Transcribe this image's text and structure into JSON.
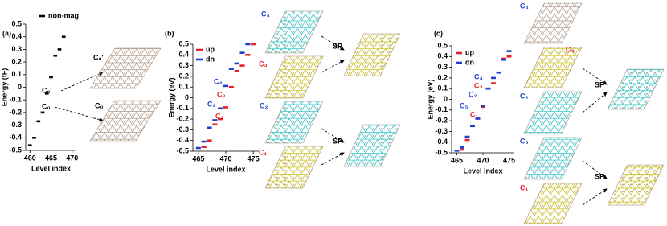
{
  "chart_data": [
    {
      "type": "level",
      "title": "(a)",
      "x_label": "Level index",
      "y_label": "Energy (tF)",
      "x": [
        460,
        461,
        462,
        463,
        464,
        465,
        466,
        467,
        468
      ],
      "series": [
        {
          "name": "non-mag",
          "color": "#000000",
          "values": [
            -0.46,
            -0.4,
            -0.27,
            -0.2,
            -0.05,
            0.08,
            0.25,
            0.3,
            0.4
          ]
        }
      ],
      "xlim": [
        459,
        471
      ],
      "xticks": [
        460,
        465,
        470
      ],
      "ylim": [
        -0.5,
        0.5
      ],
      "yticks": [
        0.5,
        0.4,
        0.3,
        0.2,
        0.1,
        0,
        -0.1,
        -0.2,
        -0.3,
        -0.4,
        -0.5
      ],
      "annotations": [
        {
          "text": "C₀′",
          "color": "#000000"
        },
        {
          "text": "C₀",
          "color": "#000000"
        }
      ]
    },
    {
      "type": "level",
      "title": "(b)",
      "x_label": "Level index",
      "y_label": "Energy (eV)",
      "x": [
        465,
        466,
        467,
        468,
        469,
        470,
        471,
        472,
        473,
        474,
        475
      ],
      "series": [
        {
          "name": "up",
          "color": "#e8202a",
          "values": [
            null,
            -0.46,
            -0.4,
            -0.25,
            -0.2,
            -0.09,
            0.1,
            0.25,
            0.3,
            0.4,
            0.5
          ]
        },
        {
          "name": "dn",
          "color": "#1f3fcf",
          "values": [
            -0.47,
            -0.41,
            -0.28,
            -0.21,
            -0.1,
            0.11,
            0.27,
            0.32,
            0.42,
            0.5,
            null
          ]
        }
      ],
      "xlim": [
        464,
        476
      ],
      "xticks": [
        465,
        470,
        475
      ],
      "ylim": [
        -0.5,
        0.5
      ],
      "yticks": [
        0.5,
        0.4,
        0.3,
        0.2,
        0.1,
        0,
        -0.1,
        -0.2,
        -0.3,
        -0.4,
        -0.5
      ],
      "annotations": [
        {
          "text": "C₄",
          "color": "#1f3fcf"
        },
        {
          "text": "C₃",
          "color": "#e8202a"
        },
        {
          "text": "C₂",
          "color": "#1f3fcf"
        },
        {
          "text": "C₁",
          "color": "#e8202a"
        }
      ]
    },
    {
      "type": "level",
      "title": "(c)",
      "x_label": "Level index",
      "y_label": "Energy (eV)",
      "x": [
        465,
        466,
        467,
        468,
        469,
        470,
        471,
        472,
        473,
        474,
        475
      ],
      "series": [
        {
          "name": "up",
          "color": "#e8202a",
          "values": [
            null,
            -0.47,
            -0.38,
            -0.25,
            -0.18,
            -0.07,
            0.1,
            0.15,
            0.25,
            0.38,
            0.4
          ]
        },
        {
          "name": "dn",
          "color": "#1f3fcf",
          "values": [
            -0.48,
            -0.45,
            -0.35,
            -0.25,
            -0.18,
            -0.06,
            0.1,
            0.2,
            0.25,
            0.37,
            0.45
          ]
        }
      ],
      "xlim": [
        464,
        476
      ],
      "xticks": [
        465,
        470,
        475
      ],
      "ylim": [
        -0.5,
        0.5
      ],
      "yticks": [
        0.5,
        0.4,
        0.3,
        0.2,
        0.1,
        0,
        -0.1,
        -0.2,
        -0.3,
        -0.4,
        -0.5
      ],
      "annotations": [
        {
          "text": "C₄",
          "color": "#1f3fcf"
        },
        {
          "text": "C₃",
          "color": "#e8202a"
        },
        {
          "text": "C₂",
          "color": "#1f3fcf"
        },
        {
          "text": "C₅",
          "color": "#1f3fcf"
        },
        {
          "text": "C₁",
          "color": "#e8202a"
        }
      ]
    }
  ],
  "figure": {
    "structure_labels": [
      {
        "text": "C₀′",
        "color": "#000000"
      },
      {
        "text": "C₀",
        "color": "#000000"
      },
      {
        "text": "C₄",
        "color": "#1f3fcf"
      },
      {
        "text": "C₃",
        "color": "#e8202a"
      },
      {
        "text": "C₂",
        "color": "#1f3fcf"
      },
      {
        "text": "C₁",
        "color": "#e8202a"
      },
      {
        "text": "C₄",
        "color": "#1f3fcf"
      },
      {
        "text": "C₃",
        "color": "#e8202a"
      },
      {
        "text": "C₂",
        "color": "#1f3fcf"
      },
      {
        "text": "C₅",
        "color": "#1f3fcf"
      },
      {
        "text": "C₁",
        "color": "#e8202a"
      }
    ],
    "arrow_labels": [
      "SP",
      "SP",
      "SP",
      "SP"
    ]
  }
}
